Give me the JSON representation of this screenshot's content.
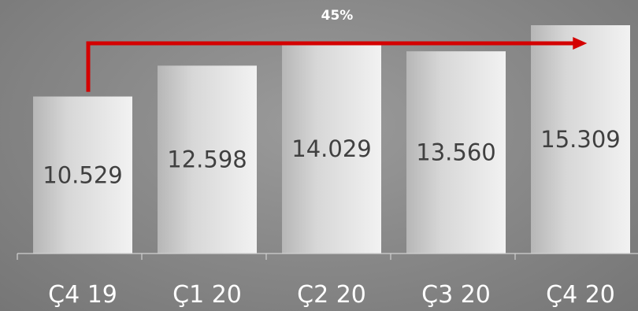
{
  "chart_data": {
    "type": "bar",
    "categories": [
      "Ç4 19",
      "Ç1 20",
      "Ç2 20",
      "Ç3 20",
      "Ç4 20"
    ],
    "values": [
      10529,
      12598,
      14029,
      13560,
      15309
    ],
    "value_labels": [
      "10.529",
      "12.598",
      "14.029",
      "13.560",
      "15.309"
    ],
    "growth_annotation": {
      "label": "45%",
      "from_category": "Ç4 19",
      "to_category": "Ç4 20",
      "color": "#d40000"
    },
    "ylim": [
      0,
      17000
    ],
    "grid": false,
    "legend": "none",
    "title": "",
    "xlabel": "",
    "ylabel": ""
  }
}
